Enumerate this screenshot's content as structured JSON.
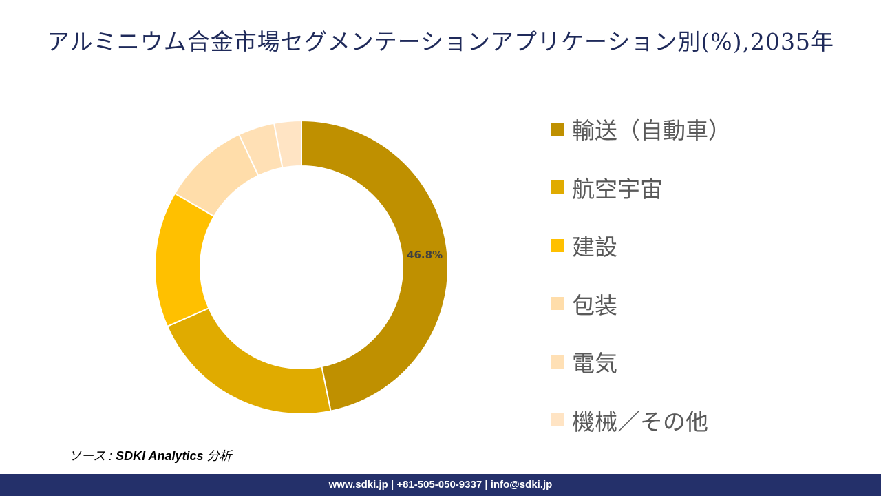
{
  "title": "アルミニウム合金市場セグメンテーションアプリケーション別(%),2035年",
  "chart_data": {
    "type": "pie",
    "subtype": "donut",
    "title": "アルミニウム合金市場セグメンテーションアプリケーション別(%),2035年",
    "categories": [
      "輸送（自動車）",
      "航空宇宙",
      "建設",
      "包装",
      "電気",
      "機械／その他"
    ],
    "values": [
      46.8,
      21.6,
      15.0,
      9.6,
      4.0,
      3.0
    ],
    "colors": [
      "#BF9000",
      "#E0AB00",
      "#FFC000",
      "#FFDDAA",
      "#FFE0B5",
      "#FFE4C4"
    ],
    "data_labels": [
      "46.8%",
      "",
      "",
      "",
      "",
      ""
    ],
    "legend_position": "right",
    "start_angle": "top, clockwise"
  },
  "source": {
    "prefix": "ソース : ",
    "name": "SDKI Analytics",
    "suffix": " 分析"
  },
  "footer": "www.sdki.jp | +81-505-050-9337 | info@sdki.jp"
}
